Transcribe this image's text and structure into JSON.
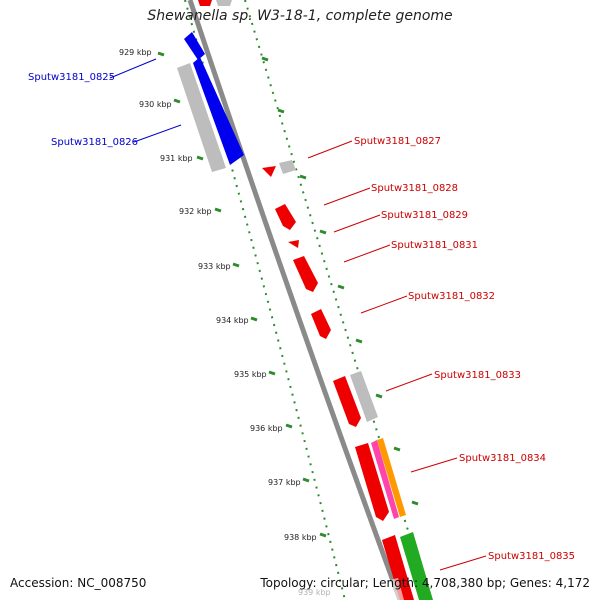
{
  "title": "Shewanella sp. W3-18-1, complete genome",
  "accession": "Accession: NC_008750",
  "summary": "Topology: circular; Length: 4,708,380 bp; Genes: 4,172",
  "colors": {
    "backbone": "#808080",
    "ticks": "#2e8b2e",
    "left_labels": "#0000cc",
    "right_labels": "#cc0000",
    "gene_blue": "#0000ee",
    "gene_red": "#ee0000",
    "gene_gray": "#bdbdbd",
    "gene_green": "#22aa22",
    "gene_pink": "#ff44aa",
    "gene_orange": "#ff9900"
  },
  "scale_labels": [
    "929 kbp",
    "930 kbp",
    "931 kbp",
    "932 kbp",
    "933 kbp",
    "934 kbp",
    "935 kbp",
    "936 kbp",
    "937 kbp",
    "938 kbp",
    "939 kbp"
  ],
  "left_genes": [
    "Sputw3181_0825",
    "Sputw3181_0826"
  ],
  "right_genes": [
    "Sputw3181_0827",
    "Sputw3181_0828",
    "Sputw3181_0829",
    "Sputw3181_0831",
    "Sputw3181_0832",
    "Sputw3181_0833",
    "Sputw3181_0834",
    "Sputw3181_0835"
  ]
}
